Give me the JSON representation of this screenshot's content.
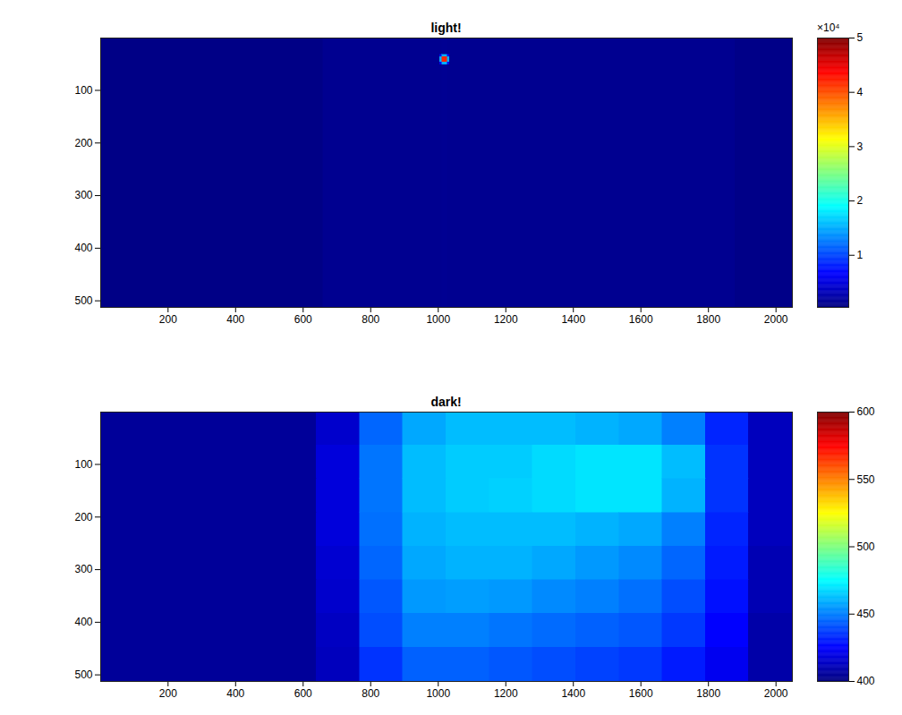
{
  "chart_data": [
    {
      "type": "heatmap",
      "title": "light!",
      "xlim": [
        0.5,
        2048.5
      ],
      "xticks": [
        200,
        400,
        600,
        800,
        1000,
        1200,
        1400,
        1600,
        1800,
        2000
      ],
      "ylim": [
        0.5,
        512.5
      ],
      "yticks": [
        100,
        200,
        300,
        400,
        500
      ],
      "x_edges": [
        0.5,
        660,
        1005,
        1012,
        1028,
        1035,
        1880,
        2048.5
      ],
      "y_edges": [
        0.5,
        32,
        37,
        47,
        52,
        512.5
      ],
      "values": [
        [
          700,
          1200,
          1200,
          1300,
          1200,
          1200,
          800
        ],
        [
          700,
          1200,
          6000,
          15000,
          6000,
          1200,
          800
        ],
        [
          700,
          1200,
          15000,
          42000,
          15000,
          1200,
          800
        ],
        [
          700,
          1200,
          6000,
          15000,
          6000,
          1200,
          800
        ],
        [
          700,
          1200,
          1200,
          1300,
          1200,
          1200,
          800
        ]
      ],
      "colorbar": {
        "lim": [
          400,
          50000
        ],
        "ticks": [
          {
            "value": 10000,
            "label": "1"
          },
          {
            "value": 20000,
            "label": "2"
          },
          {
            "value": 30000,
            "label": "3"
          },
          {
            "value": 40000,
            "label": "4"
          },
          {
            "value": 50000,
            "label": "5"
          }
        ],
        "label": "×10⁴"
      }
    },
    {
      "type": "heatmap",
      "title": "dark!",
      "xlim": [
        0.5,
        2048.5
      ],
      "xticks": [
        200,
        400,
        600,
        800,
        1000,
        1200,
        1400,
        1600,
        1800,
        2000
      ],
      "ylim": [
        0.5,
        512.5
      ],
      "yticks": [
        100,
        200,
        300,
        400,
        500
      ],
      "x_edges": [
        0.5,
        128,
        256,
        384,
        512,
        640,
        768,
        896,
        1024,
        1152,
        1280,
        1408,
        1536,
        1664,
        1792,
        1920,
        2048.5
      ],
      "y_edges": [
        0.5,
        64,
        128,
        192,
        256,
        320,
        384,
        448,
        512.5
      ],
      "values": [
        [
          405,
          405,
          405,
          405,
          405,
          415,
          445,
          458,
          462,
          462,
          462,
          460,
          458,
          450,
          432,
          412
        ],
        [
          405,
          405,
          405,
          405,
          405,
          418,
          448,
          462,
          465,
          465,
          468,
          470,
          470,
          462,
          435,
          412
        ],
        [
          405,
          405,
          405,
          405,
          405,
          418,
          448,
          462,
          465,
          466,
          468,
          470,
          470,
          460,
          435,
          412
        ],
        [
          405,
          405,
          405,
          405,
          405,
          418,
          447,
          460,
          462,
          462,
          462,
          460,
          458,
          450,
          432,
          412
        ],
        [
          405,
          405,
          405,
          405,
          405,
          416,
          445,
          458,
          460,
          460,
          458,
          455,
          452,
          445,
          430,
          410
        ],
        [
          405,
          405,
          405,
          405,
          405,
          415,
          442,
          455,
          456,
          455,
          452,
          450,
          447,
          440,
          428,
          410
        ],
        [
          405,
          405,
          405,
          405,
          405,
          413,
          440,
          450,
          450,
          448,
          446,
          444,
          442,
          436,
          425,
          408
        ],
        [
          405,
          405,
          405,
          405,
          405,
          412,
          435,
          444,
          444,
          442,
          440,
          438,
          436,
          430,
          422,
          408
        ]
      ],
      "colorbar": {
        "lim": [
          400,
          600
        ],
        "ticks": [
          400,
          450,
          500,
          550,
          600
        ]
      }
    }
  ]
}
